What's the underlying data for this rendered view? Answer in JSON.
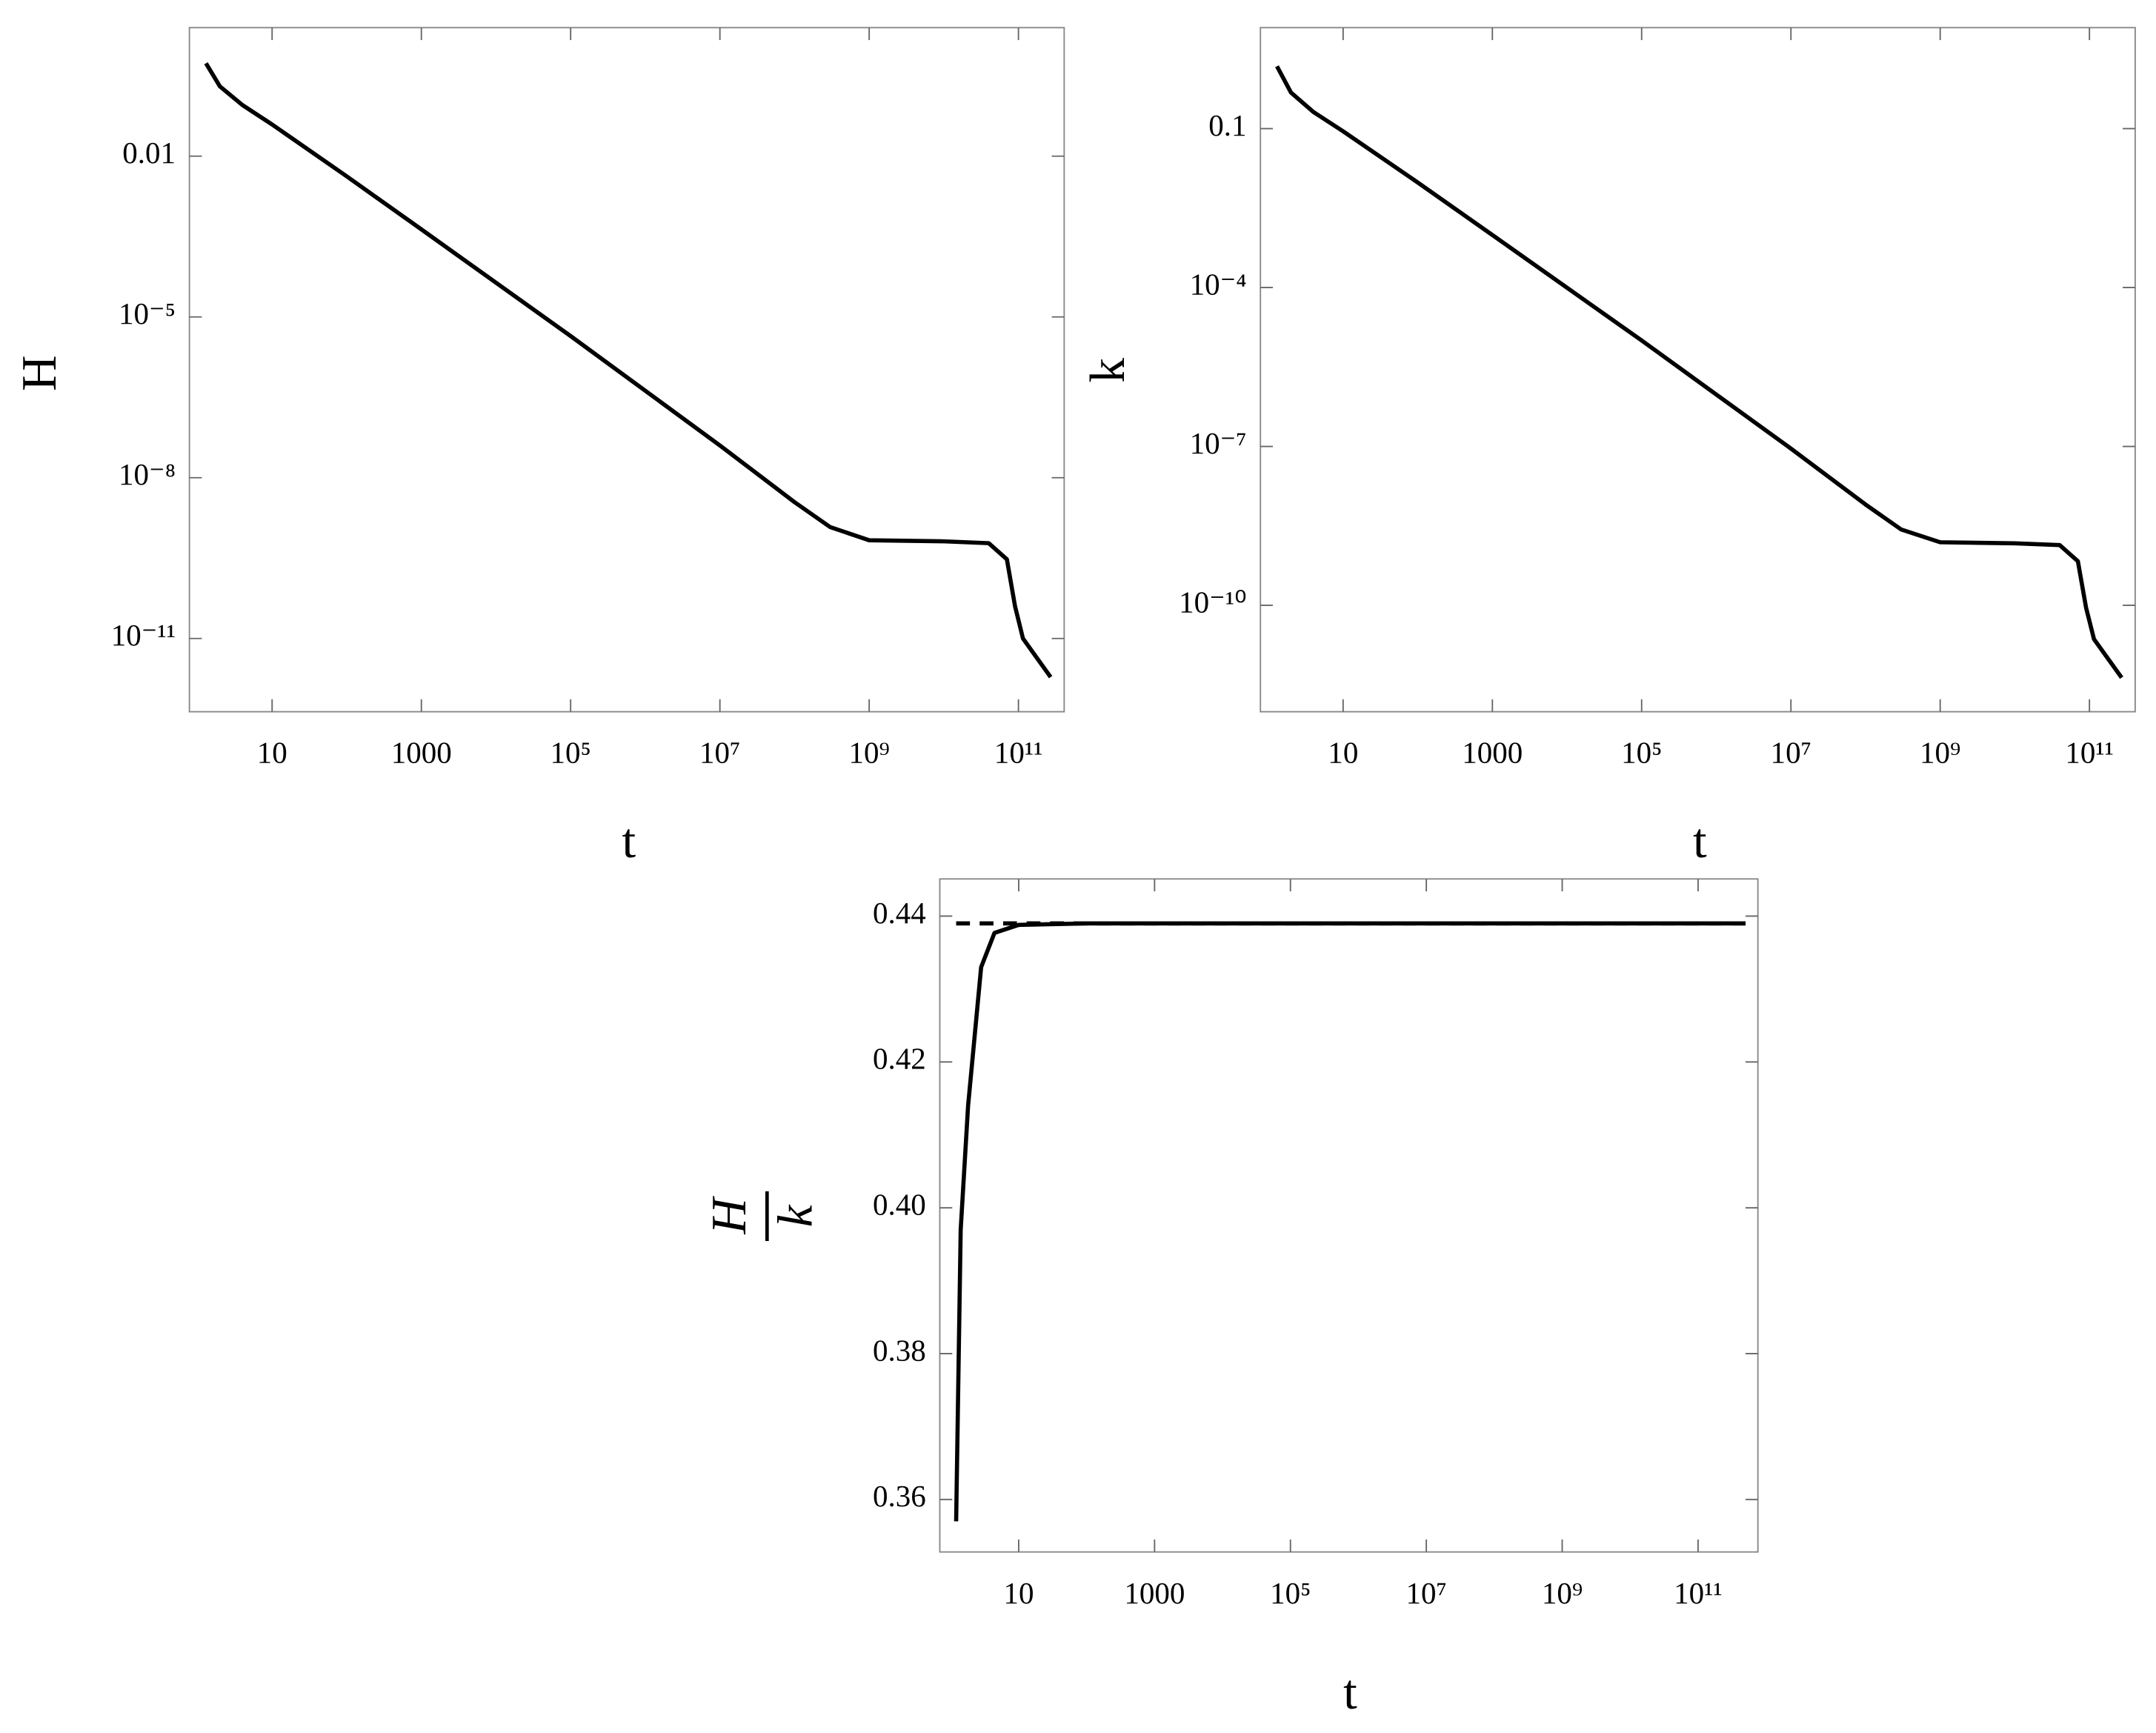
{
  "chart_data": [
    {
      "type": "line",
      "ylabel": "H",
      "xlabel": "t",
      "xscale": "log",
      "yscale": "log",
      "xlim": [
        0.78,
        410000000000.0
      ],
      "ylim": [
        4.3e-13,
        2.5
      ],
      "xticks": [
        10,
        1000,
        {
          "value": 100000.0,
          "label": "10⁵"
        },
        {
          "value": 10000000.0,
          "label": "10⁷"
        },
        {
          "value": 1000000000.0,
          "label": "10⁹"
        },
        {
          "value": 100000000000.0,
          "label": "10¹¹"
        }
      ],
      "yticks": [
        0.01,
        {
          "value": 1e-05,
          "label": "10⁻⁵"
        },
        {
          "value": 1e-08,
          "label": "10⁻⁸"
        },
        {
          "value": 1e-11,
          "label": "10⁻¹¹"
        }
      ],
      "x": [
        1.3,
        2,
        4,
        10,
        100,
        1000,
        100000.0,
        10000000.0,
        100000000.0,
        300000000.0,
        1000000000.0,
        10000000000.0,
        40000000000.0,
        70000000000.0,
        90000000000.0,
        115000000000.0,
        270000000000.0
      ],
      "series": [
        {
          "color": "#000000",
          "values": [
            0.54,
            0.2,
            0.09,
            0.039,
            0.0042,
            0.00043,
            4.4e-06,
            4e-08,
            3.5e-09,
            1.2e-09,
            6.8e-10,
            6.5e-10,
            6e-10,
            3e-10,
            4e-11,
            1e-11,
            1.9e-12
          ]
        }
      ]
    },
    {
      "type": "line",
      "ylabel": "k",
      "xlabel": "t",
      "xscale": "log",
      "yscale": "log",
      "xlim": [
        0.78,
        410000000000.0
      ],
      "ylim": [
        9.8e-13,
        8.05
      ],
      "xticks": [
        10,
        1000,
        {
          "value": 100000.0,
          "label": "10⁵"
        },
        {
          "value": 10000000.0,
          "label": "10⁷"
        },
        {
          "value": 1000000000.0,
          "label": "10⁹"
        },
        {
          "value": 100000000000.0,
          "label": "10¹¹"
        }
      ],
      "yticks": [
        0.1,
        {
          "value": 0.0001,
          "label": "10⁻⁴"
        },
        {
          "value": 1e-07,
          "label": "10⁻⁷"
        },
        {
          "value": 1e-10,
          "label": "10⁻¹⁰"
        }
      ],
      "x": [
        1.3,
        2,
        4,
        10,
        100,
        1000,
        100000.0,
        10000000.0,
        100000000.0,
        300000000.0,
        1000000000.0,
        10000000000.0,
        40000000000.0,
        70000000000.0,
        90000000000.0,
        115000000000.0,
        270000000000.0
      ],
      "series": [
        {
          "color": "#000000",
          "values": [
            1.5,
            0.48,
            0.206,
            0.089,
            0.0096,
            0.00098,
            1e-05,
            9.1e-08,
            8e-09,
            2.7e-09,
            1.55e-09,
            1.48e-09,
            1.37e-09,
            6.8e-10,
            9.1e-11,
            2.3e-11,
            4.3e-12
          ]
        }
      ]
    },
    {
      "type": "line",
      "ylabel": {
        "numerator": "H",
        "denominator": "k"
      },
      "xlabel": "t",
      "xscale": "log",
      "yscale": "linear",
      "xlim": [
        0.69,
        760000000000.0
      ],
      "ylim": [
        0.3528,
        0.4451
      ],
      "xticks": [
        10,
        1000,
        {
          "value": 100000.0,
          "label": "10⁵"
        },
        {
          "value": 10000000.0,
          "label": "10⁷"
        },
        {
          "value": 1000000000.0,
          "label": "10⁹"
        },
        {
          "value": 100000000000.0,
          "label": "10¹¹"
        }
      ],
      "yticks": [
        0.36,
        0.38,
        {
          "value": 0.4,
          "label": "0.40"
        },
        0.42,
        0.44
      ],
      "x": [
        1.2,
        1.4,
        1.8,
        2.8,
        4.4,
        10,
        100,
        10000,
        100000000.0,
        500000000000.0
      ],
      "series": [
        {
          "color": "#000000",
          "dash": true,
          "x": [
            1.2,
            500000000000.0
          ],
          "values": [
            0.439,
            0.439
          ]
        },
        {
          "color": "#000000",
          "values": [
            0.357,
            0.397,
            0.414,
            0.433,
            0.4377,
            0.4388,
            0.439,
            0.439,
            0.439,
            0.439
          ]
        }
      ]
    }
  ]
}
